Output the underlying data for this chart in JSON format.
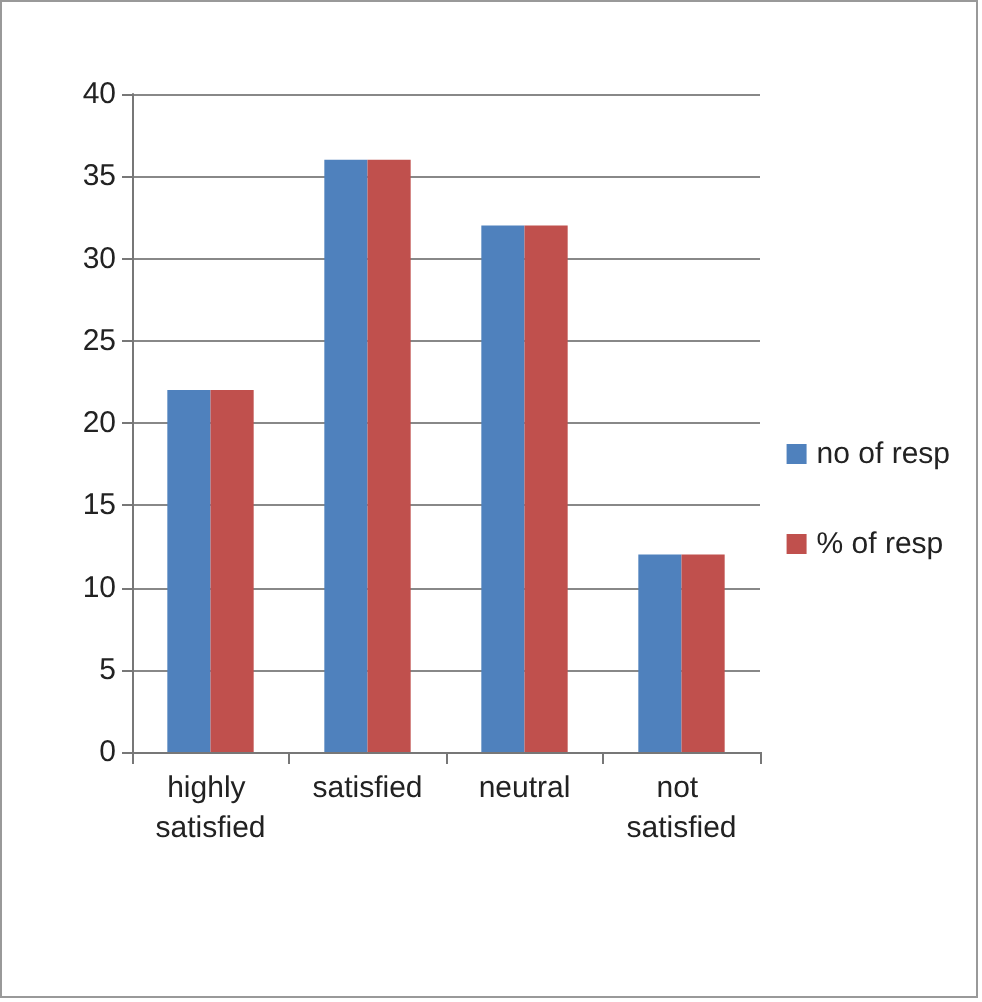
{
  "chart_data": {
    "type": "bar",
    "categories": [
      "highly satisfied",
      "satisfied",
      "neutral",
      "not satisfied"
    ],
    "series": [
      {
        "name": "no of resp",
        "color": "#4f81bd",
        "values": [
          22,
          36,
          32,
          12
        ]
      },
      {
        "name": "% of resp",
        "color": "#c0504d",
        "values": [
          22,
          36,
          32,
          12
        ]
      }
    ],
    "ylim": [
      0,
      40
    ],
    "yticks": [
      0,
      5,
      10,
      15,
      20,
      25,
      30,
      35,
      40
    ],
    "grid": "y",
    "legend": "right"
  }
}
